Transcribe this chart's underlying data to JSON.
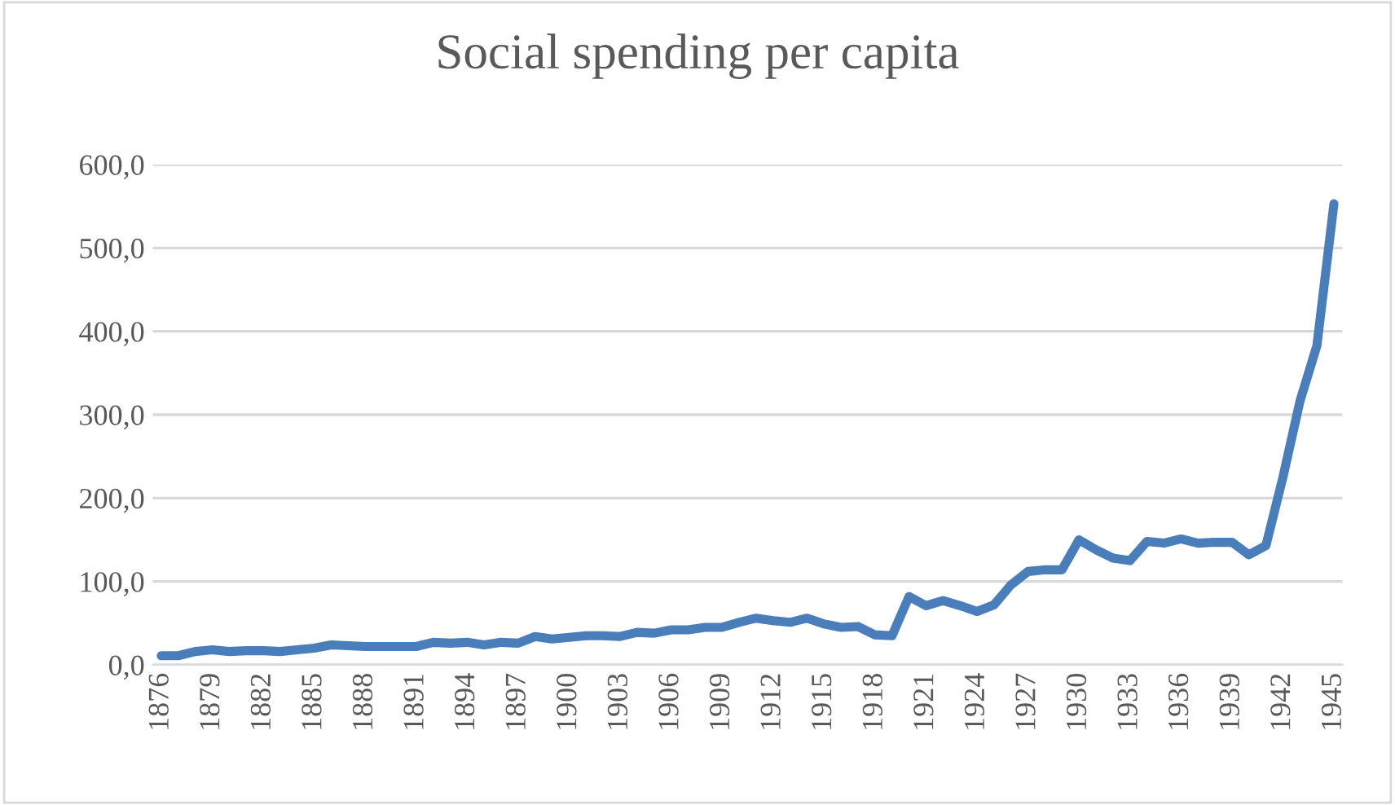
{
  "chart_data": {
    "type": "line",
    "title": "Social spending per capita",
    "categories": [
      "1876",
      null,
      null,
      "1879",
      null,
      null,
      "1882",
      null,
      null,
      "1885",
      null,
      null,
      "1888",
      null,
      null,
      "1891",
      null,
      null,
      "1894",
      null,
      null,
      "1897",
      null,
      null,
      "1900",
      null,
      null,
      "1903",
      null,
      null,
      "1906",
      null,
      null,
      "1909",
      null,
      null,
      "1912",
      null,
      null,
      "1915",
      null,
      null,
      "1918",
      null,
      null,
      "1921",
      null,
      null,
      "1924",
      null,
      null,
      "1927",
      null,
      null,
      "1930",
      null,
      null,
      "1933",
      null,
      null,
      "1936",
      null,
      null,
      "1939",
      null,
      null,
      "1942",
      null,
      null,
      "1945"
    ],
    "series": [
      {
        "color": "#4a7ebb",
        "values": [
          11,
          11,
          16,
          18,
          16,
          17,
          17,
          16,
          18,
          20,
          24,
          23,
          22,
          22,
          22,
          22,
          27,
          26,
          27,
          24,
          27,
          26,
          34,
          31,
          33,
          35,
          35,
          34,
          39,
          38,
          42,
          42,
          45,
          45,
          51,
          56,
          53,
          51,
          56,
          49,
          45,
          46,
          36,
          35,
          82,
          71,
          77,
          71,
          64,
          72,
          96,
          112,
          114,
          114,
          150,
          138,
          128,
          125,
          148,
          146,
          151,
          146,
          147,
          147,
          132,
          143,
          225,
          316,
          383,
          553
        ]
      }
    ],
    "ylim": [
      0,
      600
    ],
    "yticks": [
      {
        "value": 0,
        "label": "0,0"
      },
      {
        "value": 100,
        "label": "100,0"
      },
      {
        "value": 200,
        "label": "200,0"
      },
      {
        "value": 300,
        "label": "300,0"
      },
      {
        "value": 400,
        "label": "400,0"
      },
      {
        "value": 500,
        "label": "500,0"
      },
      {
        "value": 600,
        "label": "600,0"
      }
    ],
    "grid": "y",
    "legend": false,
    "marker": "none",
    "line_style": "solid"
  }
}
